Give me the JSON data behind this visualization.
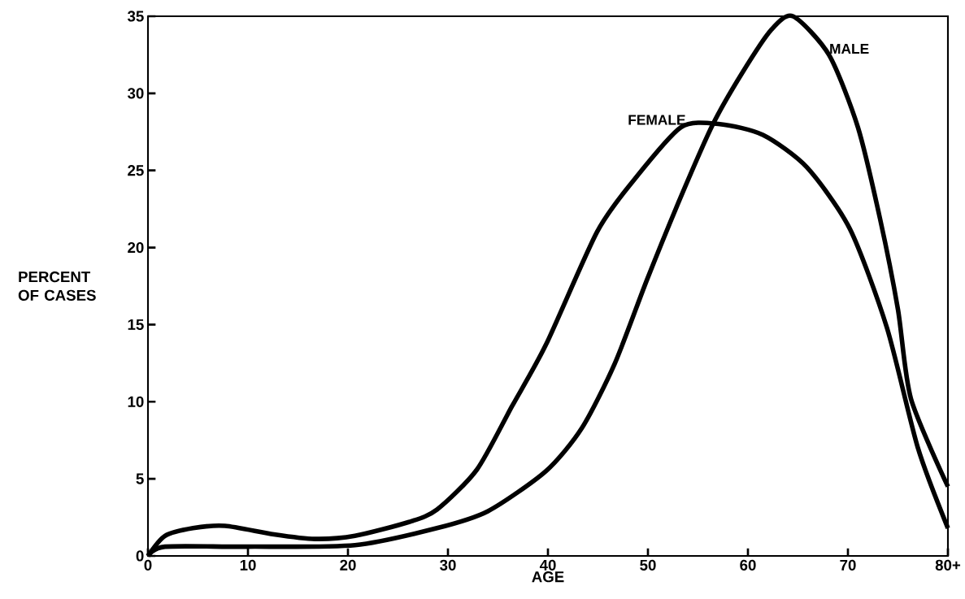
{
  "chart_data": {
    "type": "line",
    "xlabel": "AGE",
    "ylabel": "PERCENT OF CASES",
    "xlim": [
      0,
      80
    ],
    "ylim": [
      0,
      35
    ],
    "xticks": [
      0,
      10,
      20,
      30,
      40,
      50,
      60,
      70,
      {
        "value": 80,
        "label": "80+"
      }
    ],
    "yticks": [
      0,
      5,
      10,
      15,
      20,
      25,
      30,
      35
    ],
    "legend": false,
    "grid": false,
    "marker": "none",
    "line_style": "solid",
    "series": [
      {
        "name": "MALE",
        "color": "#000000",
        "x": [
          0,
          1.7,
          9.8,
          20.7,
          28.9,
          34.0,
          39.8,
          43.4,
          46.7,
          49.9,
          53.3,
          56.5,
          59.4,
          62.3,
          64.5,
          68.1,
          71.0,
          73.2,
          75.0,
          76.3,
          80
        ],
        "values": [
          0,
          0.6,
          0.6,
          0.7,
          1.8,
          2.9,
          5.5,
          8.3,
          12.5,
          17.9,
          23.3,
          28.0,
          31.3,
          34.1,
          35.0,
          32.5,
          27.8,
          21.9,
          16.0,
          10.2,
          4.5
        ]
      },
      {
        "name": "FEMALE",
        "color": "#000000",
        "x": [
          0,
          1.7,
          4.5,
          7.7,
          12.6,
          16.7,
          20.7,
          26.1,
          28.9,
          32.9,
          36.4,
          39.8,
          44.9,
          48.5,
          53.3,
          57.2,
          61.5,
          65.9,
          70.2,
          73.9,
          77.0,
          80
        ],
        "values": [
          0,
          1.3,
          1.8,
          1.95,
          1.4,
          1.1,
          1.3,
          2.2,
          3.0,
          5.6,
          9.7,
          13.7,
          21.0,
          24.3,
          27.8,
          28.0,
          27.3,
          25.2,
          21.2,
          14.8,
          7.0,
          1.8
        ]
      }
    ]
  }
}
